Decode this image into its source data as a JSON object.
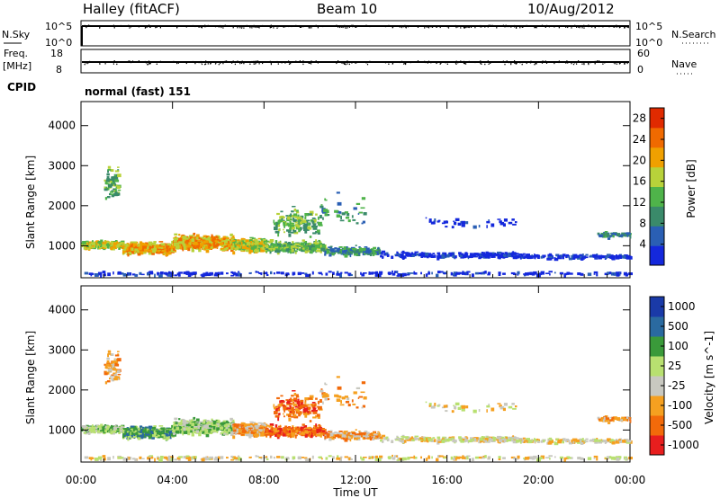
{
  "header": {
    "station": "Halley (fitACF)",
    "beam": "Beam 10",
    "date": "10/Aug/2012"
  },
  "panels": {
    "nsky": {
      "label": "N.Sky",
      "ticks": [
        "10^5",
        "10^0"
      ],
      "right_label": "N.Search",
      "right_ticks": [
        "10^5",
        "10^0"
      ]
    },
    "freq": {
      "label_top": "Freq.",
      "label_bottom": "[MHz]",
      "ticks": [
        "18",
        "8"
      ],
      "right_label": "Nave",
      "right_ticks": [
        "60",
        "0"
      ]
    },
    "cpid": {
      "label": "CPID",
      "value": "normal (fast) 151"
    }
  },
  "colors": {
    "power": [
      "#1428dc",
      "#2a5fb4",
      "#3a8a6a",
      "#4fb34a",
      "#b8d23a",
      "#f0a000",
      "#f06a00",
      "#e02a00"
    ],
    "velocity": [
      "#e81e1e",
      "#f26a0a",
      "#f5a020",
      "#c8c8c0",
      "#b8e070",
      "#3a9a3a",
      "#2a6aa0",
      "#1a3aa8"
    ]
  },
  "chart_data": [
    {
      "type": "heatmap",
      "name": "power-panel",
      "ylabel": "Slant Range [km]",
      "xlabel": "",
      "yticks": [
        1000,
        2000,
        3000,
        4000
      ],
      "ylim": [
        200,
        4600
      ],
      "xlim_hours": [
        0,
        24
      ],
      "colorbar": {
        "label": "Power [dB]",
        "ticks": [
          "4",
          "8",
          "12",
          "16",
          "20",
          "24",
          "28"
        ],
        "range": [
          0,
          30
        ]
      }
    },
    {
      "type": "heatmap",
      "name": "velocity-panel",
      "ylabel": "Slant Range [km]",
      "xlabel": "Time UT",
      "yticks": [
        1000,
        2000,
        3000,
        4000
      ],
      "ylim": [
        200,
        4600
      ],
      "xlim_hours": [
        0,
        24
      ],
      "xticks": [
        "00:00",
        "04:00",
        "08:00",
        "12:00",
        "16:00",
        "20:00",
        "00:00"
      ],
      "colorbar": {
        "label": "Velocity [m s^-1]",
        "ticks": [
          "1000",
          "500",
          "100",
          "25",
          "-25",
          "-100",
          "-500",
          "-1000"
        ]
      }
    }
  ]
}
